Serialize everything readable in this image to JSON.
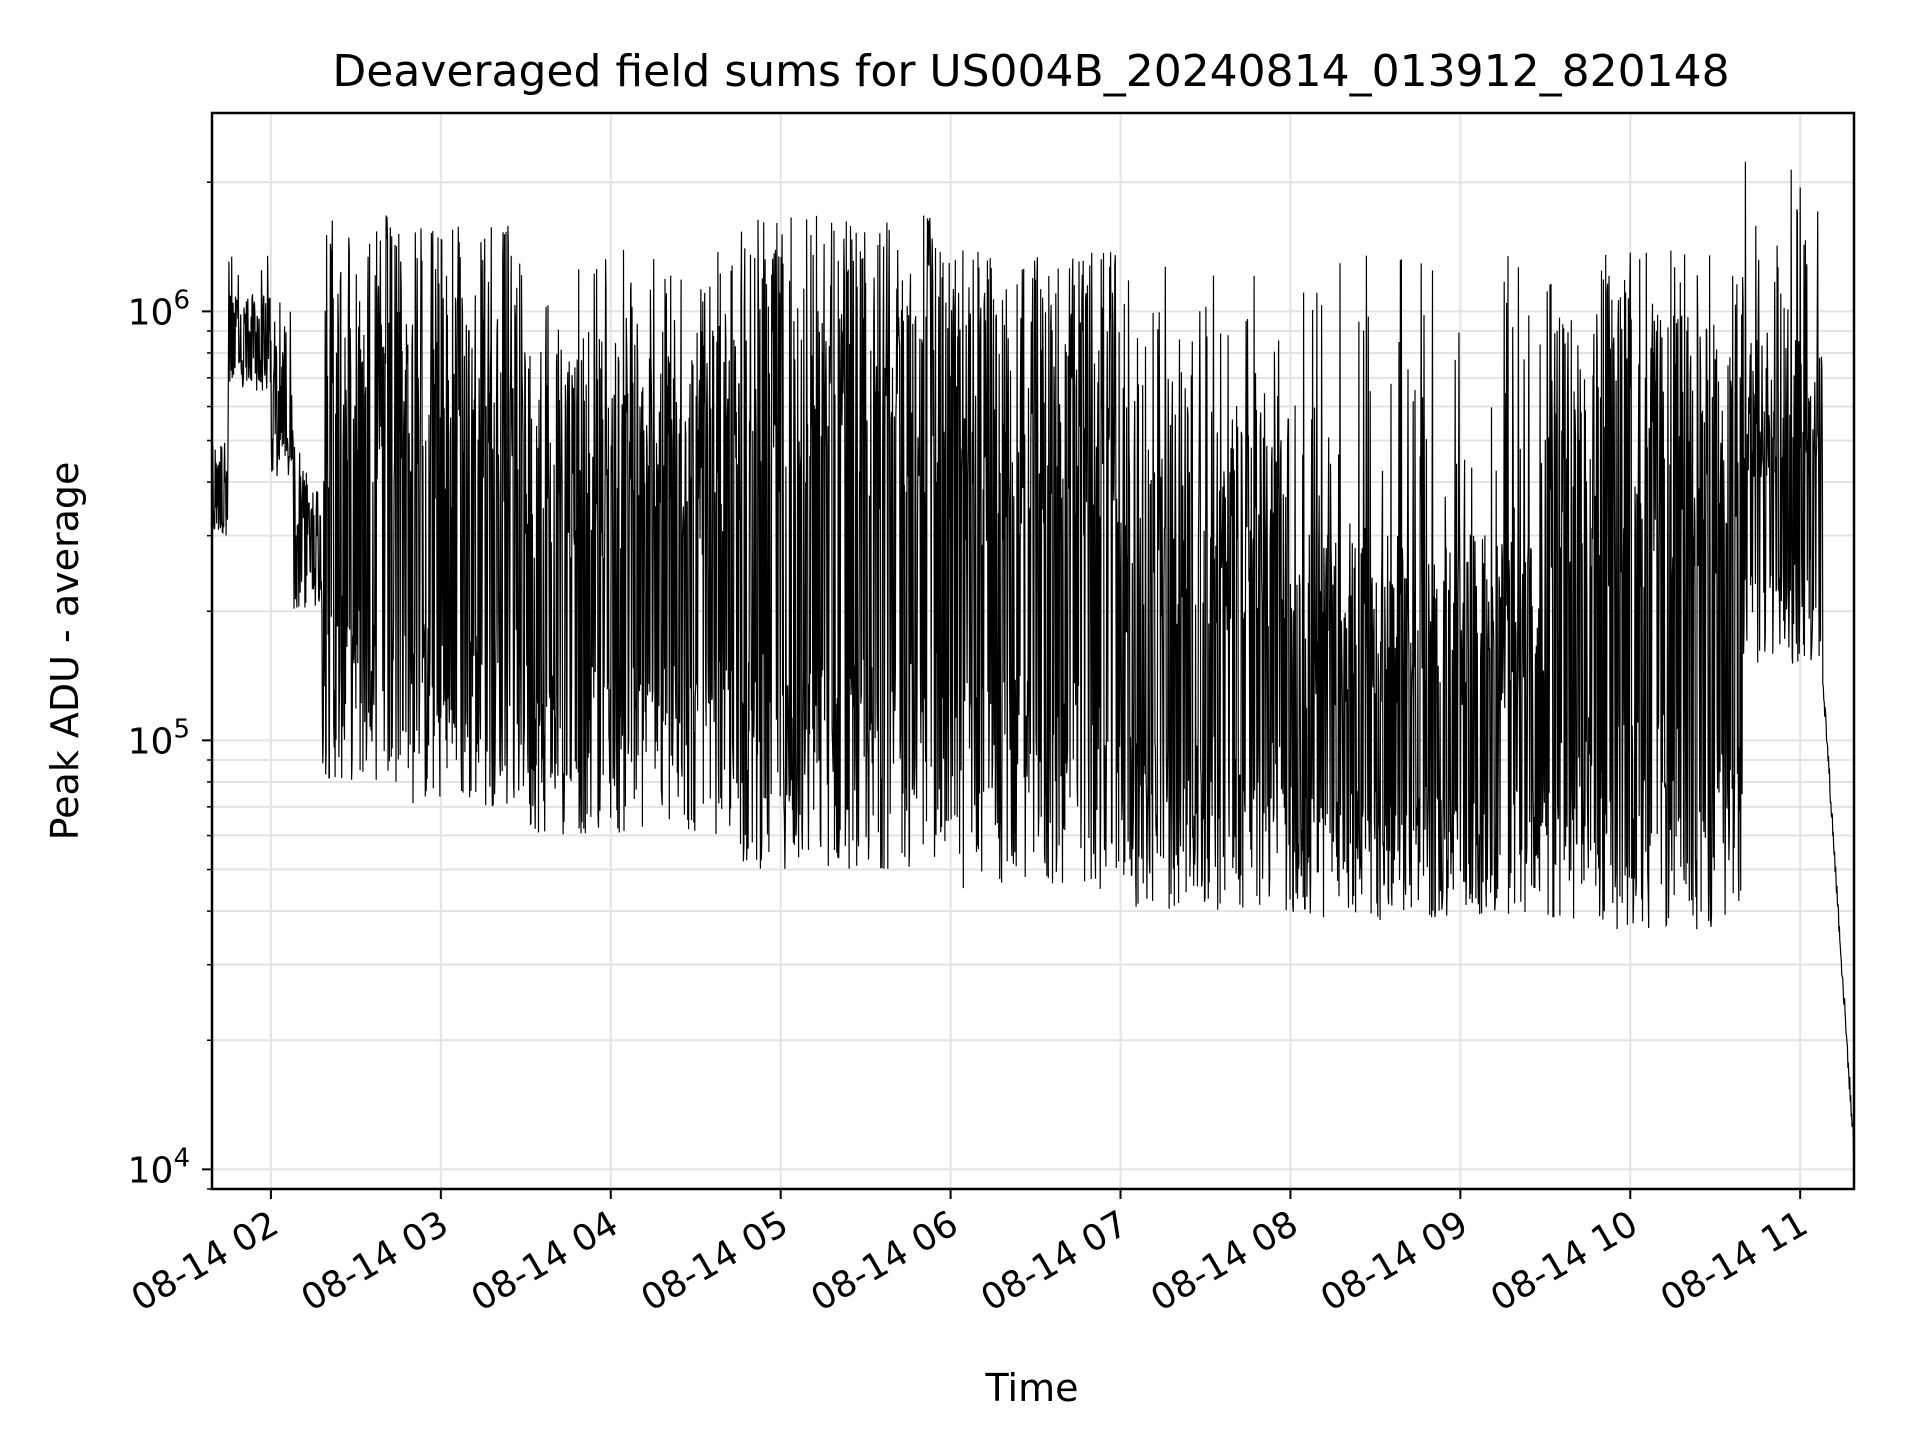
{
  "chart_data": {
    "type": "line",
    "title": "Deaveraged field sums for US004B_20240814_013912_820148",
    "xlabel": "Time",
    "ylabel": "Peak ADU - average",
    "yscale": "log",
    "ylim": [
      9000,
      2900000
    ],
    "xlim": [
      "2024-08-14 01:39:12",
      "2024-08-14 11:19:00"
    ],
    "grid": true,
    "line_color": "#000000",
    "x_ticks": [
      "08-14 02",
      "08-14 03",
      "08-14 04",
      "08-14 05",
      "08-14 06",
      "08-14 07",
      "08-14 08",
      "08-14 09",
      "08-14 10",
      "08-14 11"
    ],
    "y_ticks": [
      {
        "base": "10",
        "exp": "4",
        "value": 10000
      },
      {
        "base": "10",
        "exp": "5",
        "value": 100000
      },
      {
        "base": "10",
        "exp": "6",
        "value": 1000000
      }
    ],
    "segments": [
      {
        "start": "2024-08-14 01:39",
        "end": "2024-08-14 01:45",
        "lo": 300000,
        "hi": 500000,
        "peak": 550000
      },
      {
        "start": "2024-08-14 01:45",
        "end": "2024-08-14 02:00",
        "lo": 650000,
        "hi": 1100000,
        "peak": 1500000
      },
      {
        "start": "2024-08-14 02:00",
        "end": "2024-08-14 02:08",
        "lo": 400000,
        "hi": 900000,
        "peak": 1050000
      },
      {
        "start": "2024-08-14 02:08",
        "end": "2024-08-14 02:18",
        "lo": 200000,
        "hi": 400000,
        "peak": 500000
      },
      {
        "start": "2024-08-14 02:18",
        "end": "2024-08-14 02:45",
        "lo": 80000,
        "hi": 1400000,
        "peak": 1700000
      },
      {
        "start": "2024-08-14 02:45",
        "end": "2024-08-14 03:30",
        "lo": 70000,
        "hi": 1300000,
        "peak": 1600000
      },
      {
        "start": "2024-08-14 03:30",
        "end": "2024-08-14 04:45",
        "lo": 60000,
        "hi": 900000,
        "peak": 1400000
      },
      {
        "start": "2024-08-14 04:45",
        "end": "2024-08-14 06:00",
        "lo": 50000,
        "hi": 1400000,
        "peak": 1700000
      },
      {
        "start": "2024-08-14 06:00",
        "end": "2024-08-14 07:00",
        "lo": 45000,
        "hi": 1200000,
        "peak": 1400000
      },
      {
        "start": "2024-08-14 07:00",
        "end": "2024-08-14 08:00",
        "lo": 40000,
        "hi": 600000,
        "peak": 1300000
      },
      {
        "start": "2024-08-14 08:00",
        "end": "2024-08-14 09:30",
        "lo": 38000,
        "hi": 300000,
        "peak": 1350000
      },
      {
        "start": "2024-08-14 09:30",
        "end": "2024-08-14 10:40",
        "lo": 36000,
        "hi": 1000000,
        "peak": 1400000
      },
      {
        "start": "2024-08-14 10:40",
        "end": "2024-08-14 11:08",
        "lo": 150000,
        "hi": 900000,
        "peak": 2300000
      },
      {
        "start": "2024-08-14 11:08",
        "end": "2024-08-14 11:19",
        "lo": 11000,
        "hi": 140000,
        "peak": 200000
      }
    ]
  }
}
